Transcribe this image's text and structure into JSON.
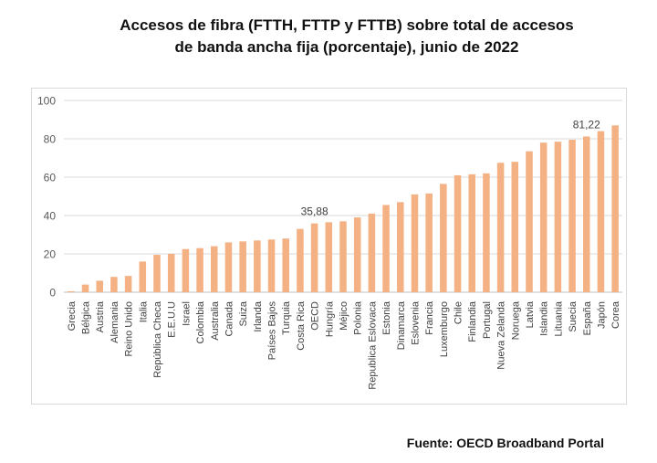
{
  "title_line1": "Accesos de fibra (FTTH, FTTP y FTTB) sobre total de accesos",
  "title_line2": "de banda ancha fija (porcentaje), junio de 2022",
  "source": "Fuente: OECD Broadband Portal",
  "bar_color": "#f4b183",
  "chart_data": {
    "type": "bar",
    "title": "Accesos de fibra (FTTH, FTTP y FTTB) sobre total de accesos de banda ancha fija (porcentaje), junio de 2022",
    "xlabel": "",
    "ylabel": "",
    "ylim": [
      0,
      100
    ],
    "yticks": [
      0,
      20,
      40,
      60,
      80,
      100
    ],
    "grid": true,
    "categories": [
      "Grecia",
      "Bélgica",
      "Austria",
      "Alemania",
      "Reino Unido",
      "Italia",
      "República Checa",
      "E.E.U.U",
      "Israel",
      "Colombia",
      "Australia",
      "Canada",
      "Suiza",
      "Irlanda",
      "Países Bajos",
      "Turquia",
      "Costa Rica",
      "OECD",
      "Hungría",
      "Méjico",
      "Polonia",
      "Republica Eslovaca",
      "Estonia",
      "Dinamarca",
      "Eslovenia",
      "Francia",
      "Luxemburgo",
      "Chile",
      "Finlandia",
      "Portugal",
      "Nueva Zelanda",
      "Noruega",
      "Latvia",
      "Islandia",
      "Lituania",
      "Suecia",
      "España",
      "Japón",
      "Corea"
    ],
    "values": [
      0.5,
      4,
      6,
      8,
      8.5,
      16,
      19.5,
      20,
      22.5,
      23,
      24,
      26,
      26.5,
      27,
      27.5,
      28,
      33,
      35.88,
      36.5,
      37,
      39,
      41,
      45.5,
      47,
      51,
      51.5,
      56.5,
      61,
      61.5,
      62,
      67.5,
      68,
      73.5,
      78,
      78.5,
      79.5,
      81.22,
      84,
      87
    ],
    "data_labels": [
      {
        "category": "OECD",
        "text": "35,88"
      },
      {
        "category": "España",
        "text": "81,22"
      }
    ]
  }
}
